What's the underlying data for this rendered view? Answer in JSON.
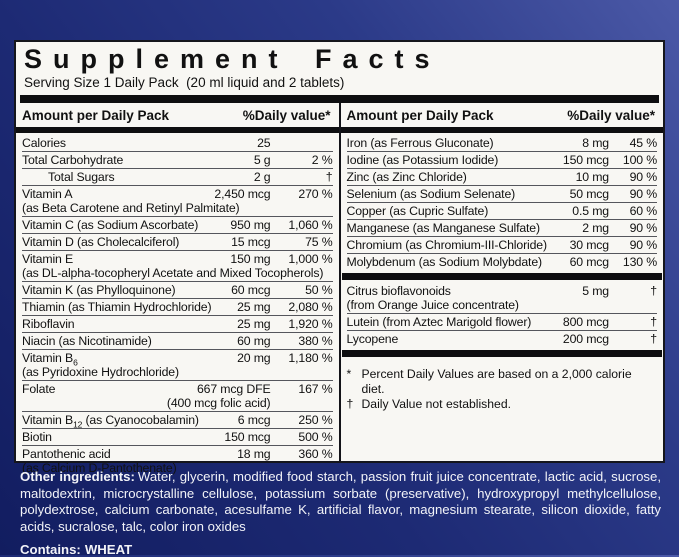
{
  "colors": {
    "bg-top": "#4b59a7",
    "bg-bottom": "#121d60",
    "panel-bg": "#f8f7f3",
    "bar": "#0e0e10",
    "ink": "#111111",
    "ingredients": "#f2f3f8"
  },
  "header": {
    "title": "Supplement Facts",
    "serving_size": "Serving Size 1 Daily Pack  (20 ml liquid and 2 tablets)"
  },
  "column_header": {
    "amount": "Amount per Daily Pack",
    "dv": "%Daily value*"
  },
  "left_rows": [
    {
      "name": "Calories",
      "amount": "25",
      "dv": ""
    },
    {
      "name": "Total Carbohydrate",
      "amount": "5 g",
      "dv": "2 %"
    },
    {
      "name": "Total Sugars",
      "indent": true,
      "amount": "2 g",
      "dv": "†"
    },
    {
      "name": "Vitamin A",
      "amount": "2,450 mcg",
      "dv": "270 %",
      "note": "(as Beta Carotene and Retinyl Palmitate)"
    },
    {
      "name": "Vitamin C (as Sodium Ascorbate)",
      "amount": "950 mg",
      "dv": "1,060 %"
    },
    {
      "name": "Vitamin D (as Cholecalciferol)",
      "amount": "15 mcg",
      "dv": "75 %"
    },
    {
      "name": "Vitamin E",
      "amount": "150 mg",
      "dv": "1,000 %",
      "note": "(as DL-alpha-tocopheryl Acetate and Mixed Tocopherols)"
    },
    {
      "name": "Vitamin K (as Phylloquinone)",
      "amount": "60 mcg",
      "dv": "50 %"
    },
    {
      "name": "Thiamin (as Thiamin Hydrochloride)",
      "amount": "25 mg",
      "dv": "2,080 %"
    },
    {
      "name": "Riboflavin",
      "amount": "25 mg",
      "dv": "1,920 %"
    },
    {
      "name": "Niacin (as Nicotinamide)",
      "amount": "60 mg",
      "dv": "380 %"
    },
    {
      "name": "Vitamin B",
      "sub": "6",
      "amount": "20 mg",
      "dv": "1,180 %",
      "note": "(as Pyridoxine Hydrochloride)"
    },
    {
      "name": "Folate",
      "amount": "667 mcg DFE",
      "dv": "167 %",
      "note": "(400 mcg folic acid)",
      "note_amount": true
    },
    {
      "name": "Vitamin B",
      "sub": "12",
      "name2": " (as Cyanocobalamin)",
      "amount": "6 mcg",
      "dv": "250 %"
    },
    {
      "name": "Biotin",
      "amount": "150 mcg",
      "dv": "500 %"
    },
    {
      "name": "Pantothenic acid",
      "amount": "18 mg",
      "dv": "360 %",
      "note": "(as Calcium D-Pantothenate)"
    }
  ],
  "right_rows": [
    {
      "name": "Iron (as Ferrous Gluconate)",
      "amount": "8 mg",
      "dv": "45 %"
    },
    {
      "name": "Iodine (as Potassium Iodide)",
      "amount": "150 mcg",
      "dv": "100 %"
    },
    {
      "name": "Zinc (as Zinc Chloride)",
      "amount": "10 mg",
      "dv": "90 %"
    },
    {
      "name": "Selenium (as Sodium Selenate)",
      "amount": "50 mcg",
      "dv": "90 %"
    },
    {
      "name": "Copper (as Cupric Sulfate)",
      "amount": "0.5 mg",
      "dv": "60 %"
    },
    {
      "name": "Manganese (as Manganese Sulfate)",
      "amount": "2 mg",
      "dv": "90 %"
    },
    {
      "name": "Chromium (as Chromium-III-Chloride)",
      "amount": "30 mcg",
      "dv": "90 %"
    },
    {
      "name": "Molybdenum (as Sodium Molybdate)",
      "amount": "60 mcg",
      "dv": "130 %"
    }
  ],
  "right_extras": [
    {
      "name": "Citrus bioflavonoids",
      "amount": "5 mg",
      "dv": "†",
      "note": "(from Orange Juice concentrate)"
    },
    {
      "name": "Lutein (from Aztec Marigold flower)",
      "amount": "800 mcg",
      "dv": "†"
    },
    {
      "name": "Lycopene",
      "amount": "200 mcg",
      "dv": "†"
    }
  ],
  "footnotes": [
    {
      "symbol": "*",
      "text": "Percent Daily Values are based on a 2,000 calorie diet."
    },
    {
      "symbol": "†",
      "text": "Daily Value not established."
    }
  ],
  "other_ingredients": {
    "label": "Other ingredients:",
    "text": "Water, glycerin, modified food starch, passion fruit juice concentrate, lactic acid, sucrose, maltodextrin, microcrystalline cellulose, potassium sorbate (preservative), hydroxypropyl methylcellulose, polydextrose, calcium carbonate, acesulfame K, artificial flavor, magnesium stearate, silicon dioxide, fatty acids, sucralose, talc, color iron oxides"
  },
  "contains": {
    "label": "Contains:",
    "value": "WHEAT"
  }
}
